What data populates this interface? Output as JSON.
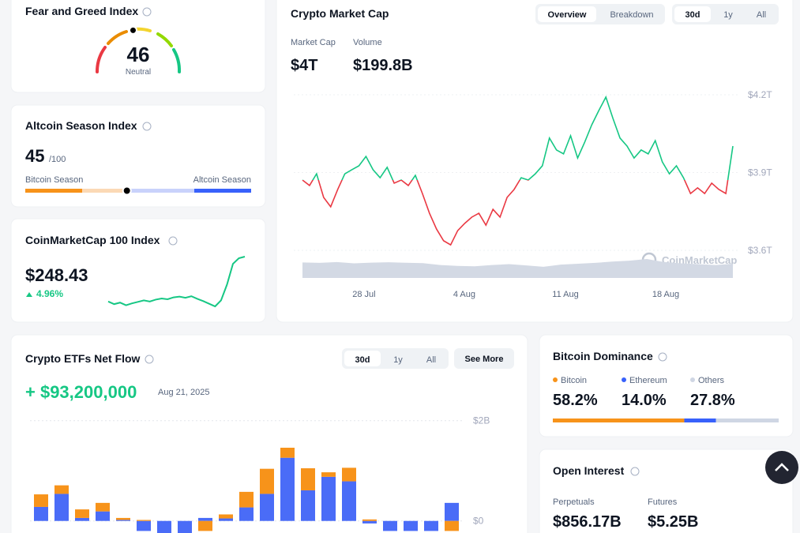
{
  "fear_greed": {
    "title": "Fear and Greed Index",
    "value": 46,
    "label": "Neutral"
  },
  "altcoin_season": {
    "title": "Altcoin Season Index",
    "value": 45,
    "max_label": "/100",
    "left_label": "Bitcoin Season",
    "right_label": "Altcoin Season"
  },
  "cmc100": {
    "title": "CoinMarketCap 100 Index",
    "price": "$248.43",
    "change": "4.96%",
    "chart": {
      "type": "line",
      "color": "#16c784",
      "values": [
        236.5,
        235.8,
        236.2,
        235.5,
        236,
        236.4,
        236.8,
        236.5,
        237,
        237.3,
        237.1,
        237.6,
        237.8,
        237.5,
        237.9,
        237.2,
        236.6,
        235.9,
        235.2,
        236.8,
        241,
        246.5,
        248,
        248.43
      ]
    }
  },
  "market_cap": {
    "title": "Crypto Market Cap",
    "tabs": [
      "Overview",
      "Breakdown"
    ],
    "ranges": [
      "30d",
      "1y",
      "All"
    ],
    "stats": [
      {
        "label": "Market Cap",
        "value": "$4T"
      },
      {
        "label": "Volume",
        "value": "$199.8B"
      }
    ],
    "watermark": "CoinMarketCap",
    "chart": {
      "type": "line",
      "up_color": "#16c784",
      "down_color": "#ea3943",
      "values": [
        3.871,
        3.85,
        3.895,
        3.804,
        3.768,
        3.835,
        3.895,
        3.911,
        3.926,
        3.962,
        3.911,
        3.88,
        3.92,
        3.859,
        3.871,
        3.85,
        3.889,
        3.819,
        3.743,
        3.682,
        3.637,
        3.621,
        3.676,
        3.704,
        3.728,
        3.743,
        3.697,
        3.758,
        3.728,
        3.804,
        3.835,
        3.88,
        3.871,
        3.895,
        3.926,
        4.033,
        3.987,
        3.972,
        4.042,
        3.956,
        4.017,
        4.084,
        4.139,
        4.191,
        4.109,
        4.033,
        4.002,
        3.956,
        3.987,
        3.972,
        4.023,
        3.941,
        3.895,
        3.926,
        3.88,
        3.819,
        3.841,
        3.819,
        3.859,
        3.835,
        3.819,
        4.002
      ],
      "ylim": [
        3.6,
        4.2
      ],
      "yticks": [
        {
          "value": 4.2,
          "label": "$4.2T"
        },
        {
          "value": 3.9,
          "label": "$3.9T"
        },
        {
          "value": 3.6,
          "label": "$3.6T"
        }
      ],
      "xticks": [
        "28 Jul",
        "4 Aug",
        "11 Aug",
        "18 Aug"
      ],
      "volume": {
        "color": "#d3d9e4",
        "values": [
          180,
          175,
          185,
          170,
          178,
          182,
          176,
          172,
          150,
          140,
          135,
          150,
          160,
          145,
          130,
          155,
          165,
          175,
          190,
          200,
          220,
          185,
          170,
          160,
          150,
          165
        ]
      }
    }
  },
  "etf": {
    "title": "Crypto ETFs Net Flow",
    "ranges": [
      "30d",
      "1y",
      "All"
    ],
    "see_more": "See More",
    "net_flow": "+ $93,200,000",
    "date": "Aug 21, 2025",
    "chart": {
      "type": "bar",
      "stacked": true,
      "ylim": [
        -0.25,
        2.2
      ],
      "yticks": [
        {
          "value": 2,
          "label": "$2B"
        },
        {
          "value": 0,
          "label": "$0"
        }
      ],
      "series": [
        {
          "color": "#4a6cf7",
          "values": [
            0.28,
            0.54,
            0.06,
            0.19,
            0.02,
            -0.2,
            -0.25,
            -0.25,
            0.06,
            0.05,
            0.27,
            0.54,
            1.26,
            0.61,
            0.88,
            0.79,
            -0.05,
            -0.2,
            -0.2,
            -0.2,
            0.36
          ]
        },
        {
          "color": "#f7931a",
          "values": [
            0.25,
            0.17,
            0.17,
            0.17,
            0.04,
            0.02,
            0,
            0,
            -0.2,
            0.08,
            0.31,
            0.5,
            0.2,
            0.44,
            0.09,
            0.27,
            0.03,
            0,
            0,
            0,
            -0.2
          ]
        }
      ]
    }
  },
  "dominance": {
    "title": "Bitcoin Dominance",
    "names": [
      "Bitcoin",
      "Ethereum",
      "Others"
    ],
    "colors": [
      "#f7931a",
      "#3861fb",
      "#cfd6e4"
    ],
    "values": [
      58.2,
      14.0,
      27.8
    ],
    "value_labels": [
      "58.2%",
      "14.0%",
      "27.8%"
    ]
  },
  "open_interest": {
    "title": "Open Interest",
    "items": [
      {
        "label": "Perpetuals",
        "value": "$856.17B"
      },
      {
        "label": "Futures",
        "value": "$5.25B"
      }
    ]
  }
}
